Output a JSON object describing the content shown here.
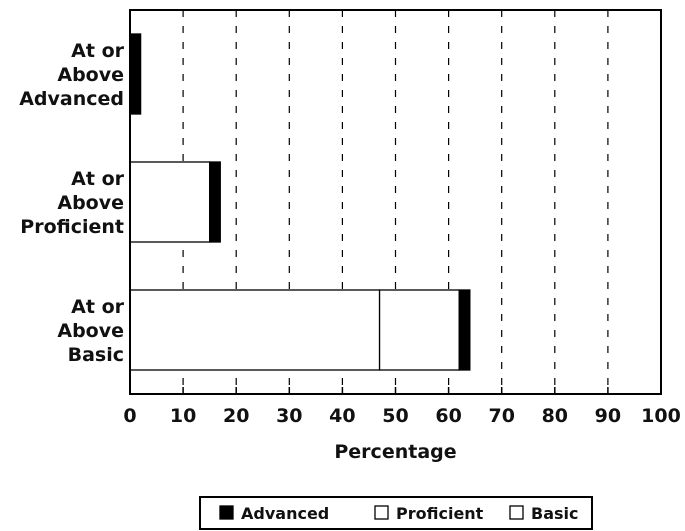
{
  "chart_data": {
    "type": "bar",
    "orientation": "horizontal",
    "stacked": true,
    "title": "",
    "xlabel": "Percentage",
    "ylabel": "",
    "xlim": [
      0,
      100
    ],
    "xticks": [
      0,
      10,
      20,
      30,
      40,
      50,
      60,
      70,
      80,
      90,
      100
    ],
    "grid": "vertical dashed",
    "legend_position": "bottom-center",
    "categories": [
      [
        "At or",
        "Above",
        "Advanced"
      ],
      [
        "At or",
        "Above",
        "Proficient"
      ],
      [
        "At or",
        "Above",
        "Basic"
      ]
    ],
    "series": [
      {
        "name": "Basic",
        "color": "#ffffff",
        "values": [
          0,
          0,
          47
        ]
      },
      {
        "name": "Proficient",
        "color": "#ffffff",
        "values": [
          0,
          15,
          15
        ]
      },
      {
        "name": "Advanced",
        "color": "#000000",
        "values": [
          2,
          2,
          2
        ]
      }
    ],
    "legend_order": [
      "Advanced",
      "Proficient",
      "Basic"
    ]
  }
}
